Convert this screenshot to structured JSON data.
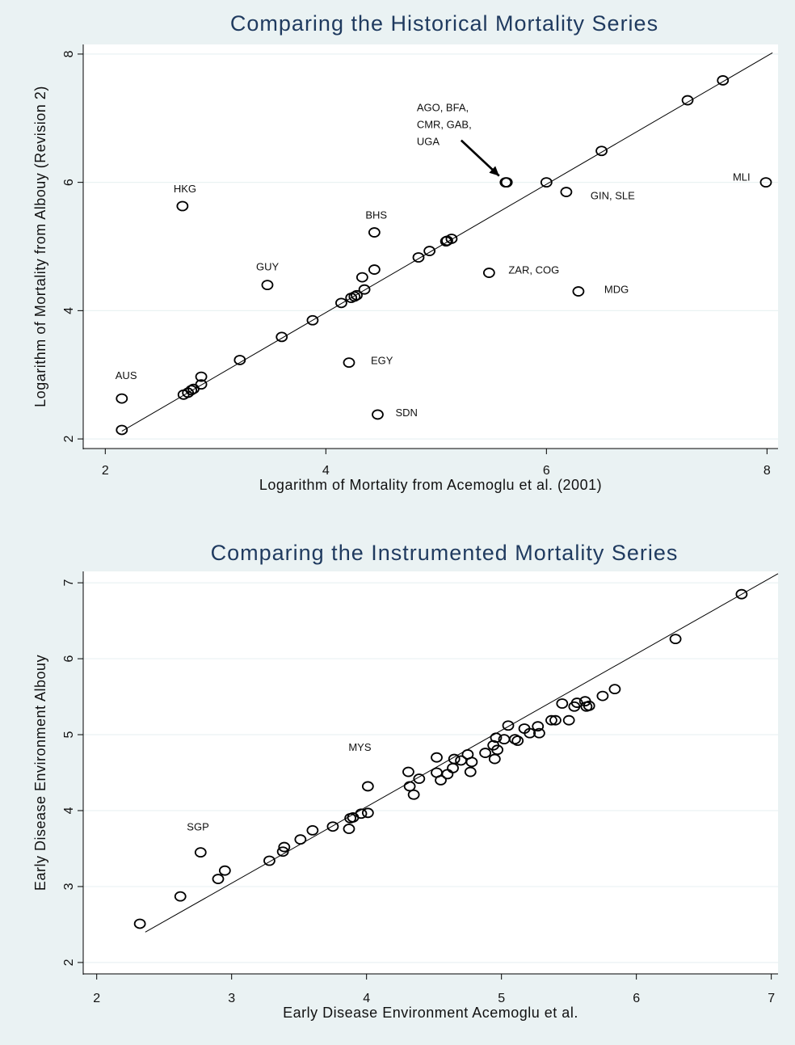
{
  "colors": {
    "background": "#eaf2f3",
    "plot_area": "#ffffff",
    "title": "#1f3a5f",
    "markers": "#000000",
    "fit_line": "#000000",
    "gridlines": "#eaf2f3"
  },
  "chart_data": [
    {
      "type": "scatter",
      "title": "Comparing the Historical Mortality Series",
      "xlabel": "Logarithm of Mortality from Acemoglu et al. (2001)",
      "ylabel": "Logarithm of Mortality from Albouy (Revision 2)",
      "xlim": [
        1.8,
        8.1
      ],
      "ylim": [
        1.85,
        8.15
      ],
      "xticks": [
        2,
        4,
        6,
        8
      ],
      "yticks": [
        2,
        4,
        6,
        8
      ],
      "grid": "horizontal",
      "fit_line": {
        "x": [
          2.15,
          8.05
        ],
        "y": [
          2.12,
          8.02
        ]
      },
      "points": [
        {
          "x": 2.15,
          "y": 2.63,
          "label": "AUS"
        },
        {
          "x": 2.15,
          "y": 2.14
        },
        {
          "x": 2.7,
          "y": 5.63,
          "label": "HKG"
        },
        {
          "x": 2.71,
          "y": 2.69
        },
        {
          "x": 2.75,
          "y": 2.72
        },
        {
          "x": 2.78,
          "y": 2.76
        },
        {
          "x": 2.8,
          "y": 2.78
        },
        {
          "x": 2.87,
          "y": 2.85
        },
        {
          "x": 2.87,
          "y": 2.97
        },
        {
          "x": 3.22,
          "y": 3.23
        },
        {
          "x": 3.47,
          "y": 4.4,
          "label": "GUY"
        },
        {
          "x": 3.6,
          "y": 3.59
        },
        {
          "x": 3.88,
          "y": 3.85
        },
        {
          "x": 4.14,
          "y": 4.12
        },
        {
          "x": 4.21,
          "y": 3.19,
          "label": "EGY"
        },
        {
          "x": 4.23,
          "y": 4.2
        },
        {
          "x": 4.26,
          "y": 4.22
        },
        {
          "x": 4.28,
          "y": 4.24
        },
        {
          "x": 4.33,
          "y": 4.52
        },
        {
          "x": 4.35,
          "y": 4.33
        },
        {
          "x": 4.44,
          "y": 4.64
        },
        {
          "x": 4.44,
          "y": 5.22,
          "label": "BHS"
        },
        {
          "x": 4.47,
          "y": 2.38,
          "label": "SDN"
        },
        {
          "x": 4.84,
          "y": 4.83
        },
        {
          "x": 4.94,
          "y": 4.93
        },
        {
          "x": 5.09,
          "y": 5.08
        },
        {
          "x": 5.1,
          "y": 5.09
        },
        {
          "x": 5.14,
          "y": 5.12
        },
        {
          "x": 5.48,
          "y": 4.59,
          "label": "ZAR, COG"
        },
        {
          "x": 5.63,
          "y": 6.0,
          "label": "AGO, BFA,\nCMR, GAB,\nUGA"
        },
        {
          "x": 5.64,
          "y": 6.0
        },
        {
          "x": 6.0,
          "y": 6.0
        },
        {
          "x": 6.18,
          "y": 5.85,
          "label": "GIN, SLE"
        },
        {
          "x": 6.29,
          "y": 4.3,
          "label": "MDG"
        },
        {
          "x": 6.5,
          "y": 6.49
        },
        {
          "x": 7.28,
          "y": 7.28
        },
        {
          "x": 7.6,
          "y": 7.59
        },
        {
          "x": 7.99,
          "y": 6.0,
          "label": "MLI"
        }
      ]
    },
    {
      "type": "scatter",
      "title": "Comparing the Instrumented Mortality Series",
      "xlabel": "Early Disease Environment Acemoglu et al.",
      "ylabel": "Early Disease Environment Albouy",
      "xlim": [
        1.9,
        7.05
      ],
      "ylim": [
        1.85,
        7.15
      ],
      "xticks": [
        2,
        3,
        4,
        5,
        6,
        7
      ],
      "yticks": [
        2,
        3,
        4,
        5,
        6,
        7
      ],
      "grid": "horizontal",
      "fit_line": {
        "x": [
          2.36,
          7.05
        ],
        "y": [
          2.4,
          7.12
        ]
      },
      "points": [
        {
          "x": 2.32,
          "y": 2.51
        },
        {
          "x": 2.62,
          "y": 2.87
        },
        {
          "x": 2.77,
          "y": 3.45,
          "label": "SGP"
        },
        {
          "x": 2.9,
          "y": 3.1
        },
        {
          "x": 2.95,
          "y": 3.21
        },
        {
          "x": 3.28,
          "y": 3.34
        },
        {
          "x": 3.38,
          "y": 3.46
        },
        {
          "x": 3.39,
          "y": 3.52
        },
        {
          "x": 3.51,
          "y": 3.62
        },
        {
          "x": 3.6,
          "y": 3.74
        },
        {
          "x": 3.75,
          "y": 3.79
        },
        {
          "x": 3.87,
          "y": 3.76
        },
        {
          "x": 3.88,
          "y": 3.9
        },
        {
          "x": 3.9,
          "y": 3.91
        },
        {
          "x": 3.96,
          "y": 3.96
        },
        {
          "x": 4.01,
          "y": 3.97
        },
        {
          "x": 4.01,
          "y": 4.32,
          "label": "MYS"
        },
        {
          "x": 4.31,
          "y": 4.51
        },
        {
          "x": 4.32,
          "y": 4.32
        },
        {
          "x": 4.35,
          "y": 4.21
        },
        {
          "x": 4.39,
          "y": 4.42
        },
        {
          "x": 4.52,
          "y": 4.5
        },
        {
          "x": 4.52,
          "y": 4.7
        },
        {
          "x": 4.55,
          "y": 4.4
        },
        {
          "x": 4.6,
          "y": 4.48
        },
        {
          "x": 4.64,
          "y": 4.56
        },
        {
          "x": 4.65,
          "y": 4.68
        },
        {
          "x": 4.7,
          "y": 4.66
        },
        {
          "x": 4.75,
          "y": 4.74
        },
        {
          "x": 4.77,
          "y": 4.51
        },
        {
          "x": 4.78,
          "y": 4.64
        },
        {
          "x": 4.88,
          "y": 4.76
        },
        {
          "x": 4.94,
          "y": 4.86
        },
        {
          "x": 4.95,
          "y": 4.68
        },
        {
          "x": 4.96,
          "y": 4.96
        },
        {
          "x": 4.97,
          "y": 4.8
        },
        {
          "x": 5.02,
          "y": 4.94
        },
        {
          "x": 5.05,
          "y": 5.12
        },
        {
          "x": 5.1,
          "y": 4.94
        },
        {
          "x": 5.12,
          "y": 4.92
        },
        {
          "x": 5.17,
          "y": 5.08
        },
        {
          "x": 5.21,
          "y": 5.02
        },
        {
          "x": 5.27,
          "y": 5.11
        },
        {
          "x": 5.28,
          "y": 5.02
        },
        {
          "x": 5.37,
          "y": 5.19
        },
        {
          "x": 5.4,
          "y": 5.19
        },
        {
          "x": 5.45,
          "y": 5.41
        },
        {
          "x": 5.5,
          "y": 5.19
        },
        {
          "x": 5.54,
          "y": 5.37
        },
        {
          "x": 5.56,
          "y": 5.42
        },
        {
          "x": 5.62,
          "y": 5.44
        },
        {
          "x": 5.63,
          "y": 5.37
        },
        {
          "x": 5.65,
          "y": 5.38
        },
        {
          "x": 5.75,
          "y": 5.51
        },
        {
          "x": 5.84,
          "y": 5.6
        },
        {
          "x": 6.29,
          "y": 6.26
        },
        {
          "x": 6.78,
          "y": 6.85
        }
      ]
    }
  ]
}
